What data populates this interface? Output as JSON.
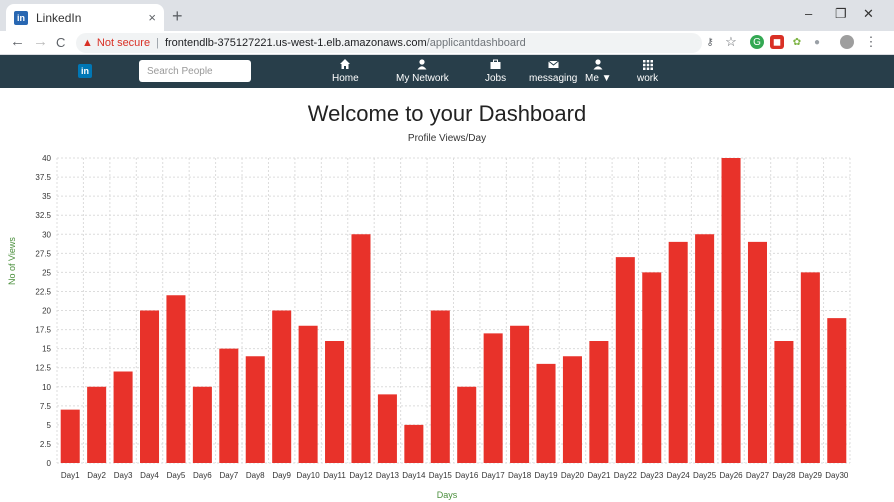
{
  "browser": {
    "tab_title": "LinkedIn",
    "tab_close": "×",
    "new_tab": "+",
    "window_controls": [
      "–",
      "❐",
      "✕"
    ],
    "nav_buttons": [
      "←",
      "→",
      "C"
    ],
    "security_label": "Not secure",
    "url_host": "frontendlb-375127221.us-west-1.elb.amazonaws.com",
    "url_path": "/applicantdashboard",
    "menu_icon": "⋮"
  },
  "app_nav": {
    "logo": "in",
    "search_placeholder": "Search People",
    "items": [
      {
        "icon": "home-icon",
        "label": "Home"
      },
      {
        "icon": "network-icon",
        "label": "My Network"
      },
      {
        "icon": "jobs-icon",
        "label": "Jobs"
      },
      {
        "icon": "messaging-icon",
        "label": "messaging"
      },
      {
        "icon": "me-icon",
        "label": "Me ▼"
      },
      {
        "icon": "work-icon",
        "label": "work"
      }
    ]
  },
  "dashboard": {
    "heading": "Welcome to your Dashboard"
  },
  "chart_data": {
    "type": "bar",
    "title": "Profile Views/Day",
    "xlabel": "Days",
    "ylabel": "No of Views",
    "ylim": [
      0,
      40
    ],
    "ytick_step": 2.5,
    "grid": true,
    "bar_color": "#e8322a",
    "categories": [
      "Day1",
      "Day2",
      "Day3",
      "Day4",
      "Day5",
      "Day6",
      "Day7",
      "Day8",
      "Day9",
      "Day10",
      "Day11",
      "Day12",
      "Day13",
      "Day14",
      "Day15",
      "Day16",
      "Day17",
      "Day18",
      "Day19",
      "Day20",
      "Day21",
      "Day22",
      "Day23",
      "Day24",
      "Day25",
      "Day26",
      "Day27",
      "Day28",
      "Day29",
      "Day30"
    ],
    "values": [
      7,
      10,
      12,
      20,
      22,
      10,
      15,
      14,
      20,
      18,
      16,
      30,
      9,
      5,
      20,
      10,
      17,
      18,
      13,
      14,
      16,
      27,
      25,
      29,
      30,
      40,
      29,
      16,
      25,
      19
    ]
  }
}
